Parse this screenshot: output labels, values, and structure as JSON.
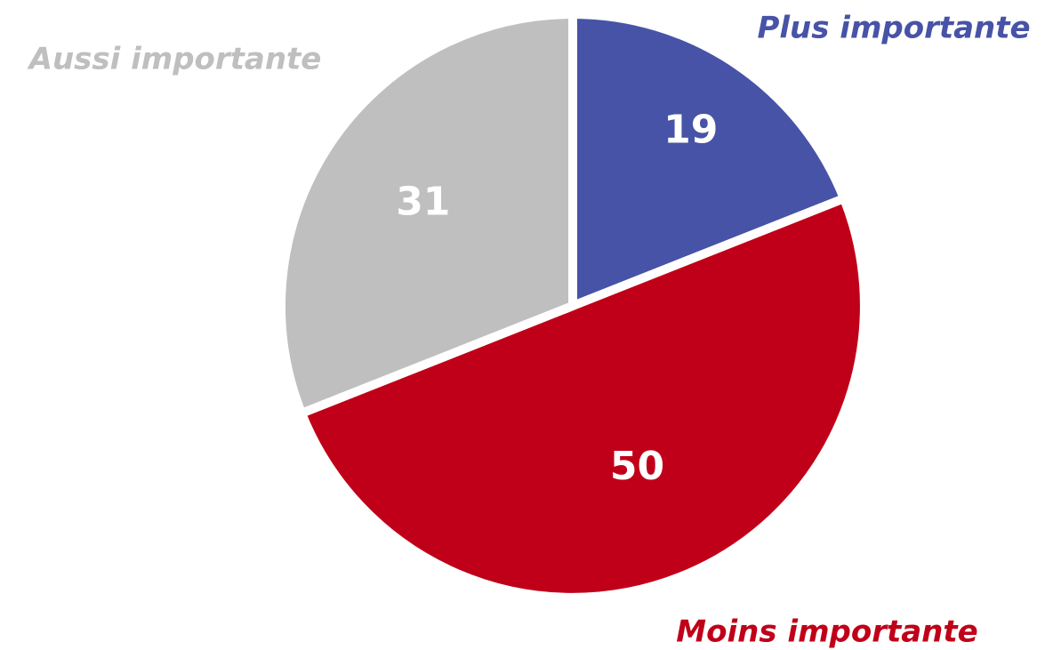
{
  "chart_data": {
    "type": "pie",
    "categories": [
      "Plus importante",
      "Moins importante",
      "Aussi importante"
    ],
    "values": [
      19,
      50,
      31
    ],
    "colors": [
      "#4753a6",
      "#c00018",
      "#bfbfbf"
    ]
  }
}
